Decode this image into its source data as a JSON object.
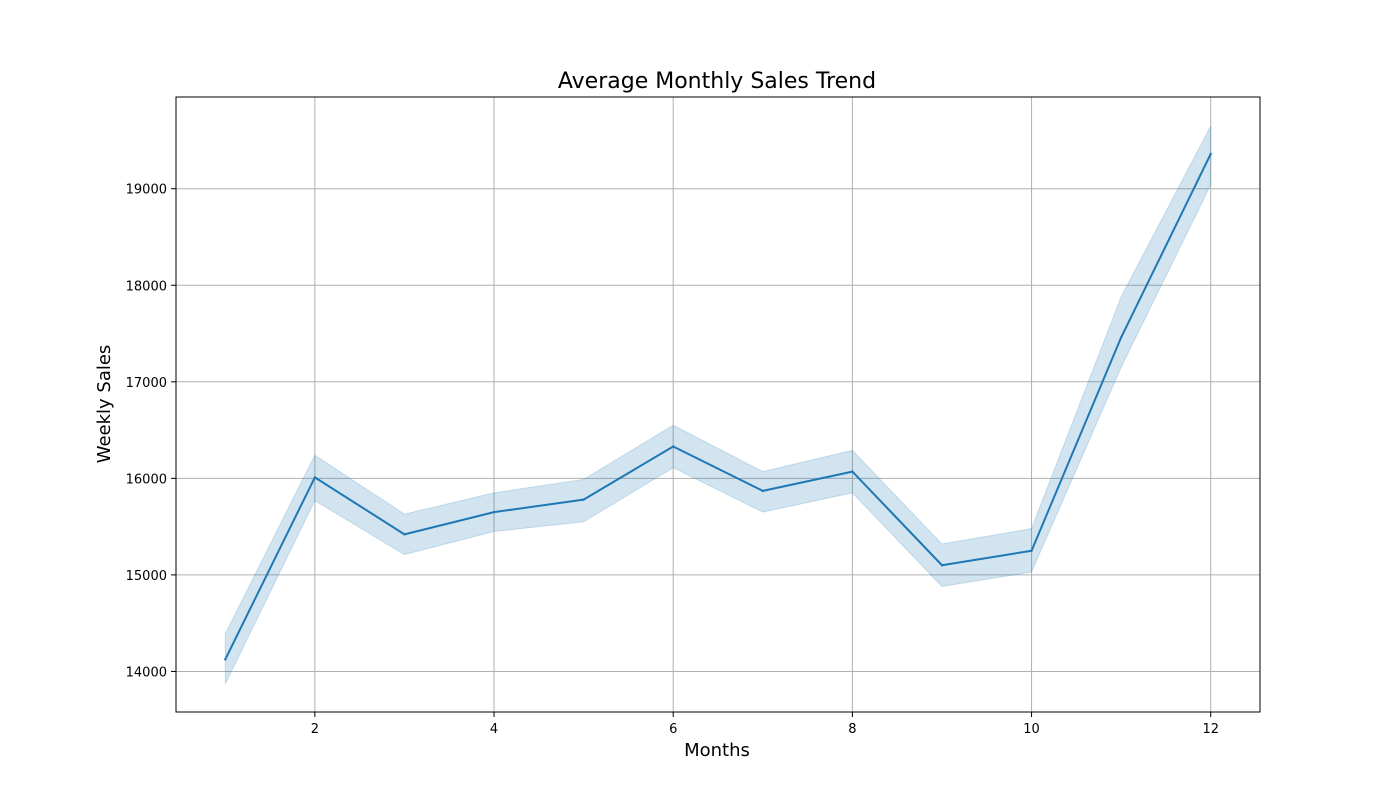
{
  "chart_data": {
    "type": "line",
    "title": "Average Monthly Sales Trend",
    "xlabel": "Months",
    "ylabel": "Weekly Sales",
    "xlim": [
      0.45,
      12.55
    ],
    "ylim": [
      13580,
      19950
    ],
    "xticks": [
      2,
      4,
      6,
      8,
      10,
      12
    ],
    "yticks": [
      14000,
      15000,
      16000,
      17000,
      18000,
      19000
    ],
    "grid": true,
    "x": [
      1,
      2,
      3,
      4,
      5,
      6,
      7,
      8,
      9,
      10,
      11,
      12
    ],
    "series": [
      {
        "values": [
          14125,
          16010,
          15420,
          15650,
          15780,
          16330,
          15870,
          16070,
          15100,
          15250,
          17460,
          19360
        ],
        "ci_lower": [
          13870,
          15770,
          15210,
          15450,
          15550,
          16110,
          15650,
          15850,
          14880,
          15030,
          17150,
          19040
        ],
        "ci_upper": [
          14390,
          16240,
          15630,
          15850,
          15990,
          16550,
          16070,
          16290,
          15320,
          15480,
          17880,
          19650
        ],
        "color": "#1f77b4",
        "band_color": "#1f77b4"
      }
    ]
  }
}
